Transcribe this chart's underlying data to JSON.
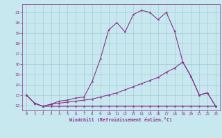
{
  "xlabel": "Windchill (Refroidissement éolien,°C)",
  "bg_color": "#c8e8f0",
  "grid_color": "#9dc4d0",
  "line_color": "#883388",
  "xlim": [
    -0.5,
    23.5
  ],
  "ylim": [
    11.5,
    21.8
  ],
  "xticks": [
    0,
    1,
    2,
    3,
    4,
    5,
    6,
    7,
    8,
    9,
    10,
    11,
    12,
    13,
    14,
    15,
    16,
    17,
    18,
    19,
    20,
    21,
    22,
    23
  ],
  "yticks": [
    12,
    13,
    14,
    15,
    16,
    17,
    18,
    19,
    20,
    21
  ],
  "series1_y": [
    13.0,
    12.2,
    11.9,
    12.1,
    12.4,
    12.5,
    12.7,
    12.8,
    14.3,
    16.5,
    19.3,
    20.0,
    19.1,
    20.8,
    21.2,
    21.0,
    20.3,
    21.0,
    19.2,
    16.2,
    14.8,
    13.0,
    13.2,
    11.9
  ],
  "series2_y": [
    13.0,
    12.2,
    11.9,
    12.1,
    12.2,
    12.3,
    12.4,
    12.5,
    12.6,
    12.8,
    13.0,
    13.2,
    13.5,
    13.8,
    14.1,
    14.4,
    14.7,
    15.2,
    15.6,
    16.2,
    14.8,
    13.0,
    13.2,
    11.9
  ],
  "series3_y": [
    13.0,
    12.2,
    11.9,
    11.9,
    11.9,
    11.9,
    11.9,
    11.9,
    11.9,
    11.9,
    11.9,
    11.9,
    11.9,
    11.9,
    11.9,
    11.9,
    11.9,
    11.9,
    11.9,
    11.9,
    11.9,
    11.9,
    11.9,
    11.9
  ]
}
